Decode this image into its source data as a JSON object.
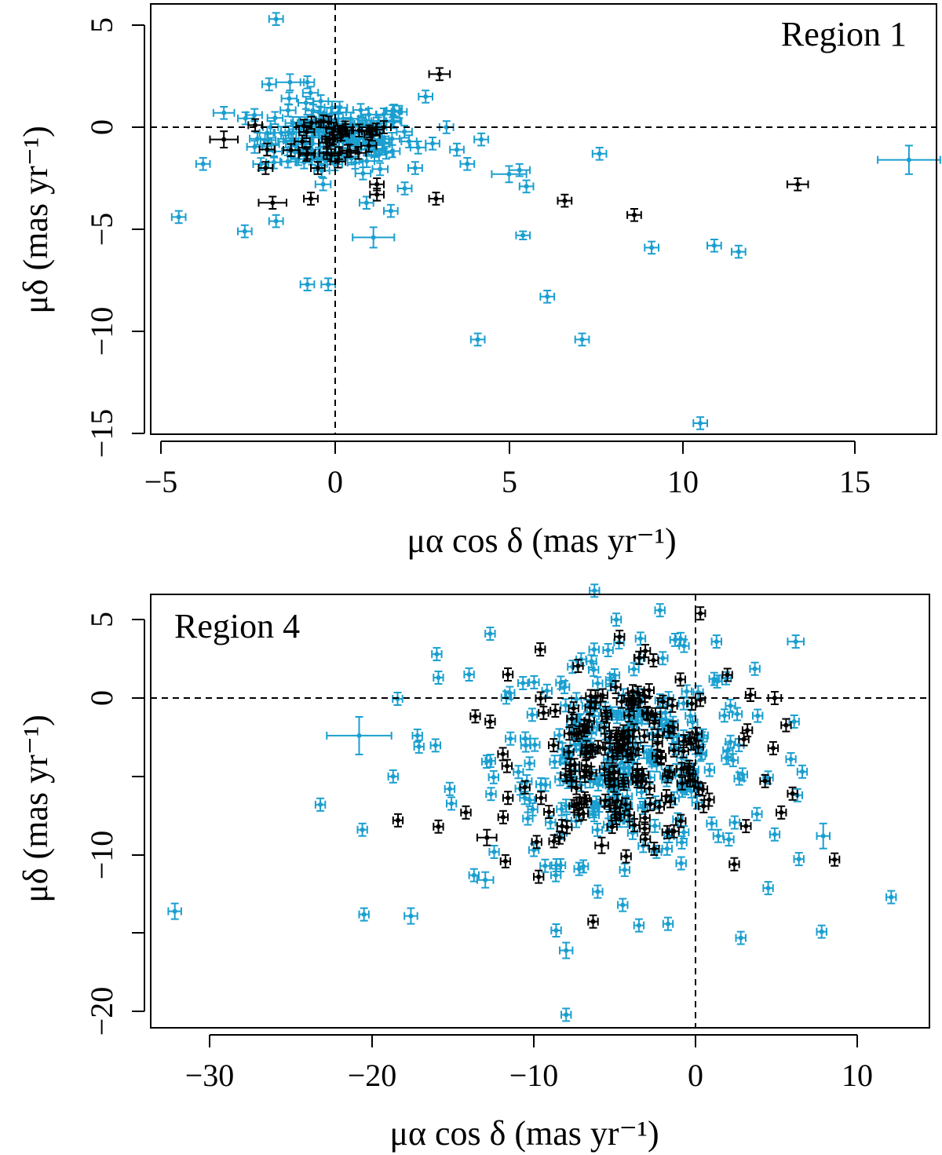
{
  "colors": {
    "cyan": "#1a9fd0",
    "black": "#000000"
  },
  "chart_data": [
    {
      "type": "scatter",
      "title": "Region 1",
      "xlabel": "μα cos δ (mas yr⁻¹)",
      "ylabel": "μδ (mas yr⁻¹)",
      "xlim": [
        -5.2,
        17.3
      ],
      "ylim": [
        -15.3,
        6.0
      ],
      "xticks": [
        -5,
        0,
        5,
        10,
        15
      ],
      "yticks": [
        5,
        0,
        -5,
        -10,
        -15
      ],
      "xtick_labels": [
        "−5",
        "0",
        "5",
        "10",
        "15"
      ],
      "ytick_labels": [
        "5",
        "0",
        "−5",
        "−10",
        "−15"
      ],
      "reference_lines": {
        "x": 0,
        "y": 0,
        "style": "dashed"
      },
      "cluster_core": {
        "x_mean": 0.0,
        "y_mean": -0.5,
        "x_sd": 0.9,
        "y_sd": 0.7,
        "n_cyan": 130,
        "n_black": 30
      },
      "series": [
        {
          "name": "cyan sources",
          "color": "#1a9fd0",
          "points": [
            {
              "x": -1.7,
              "y": 5.3,
              "ex": 0.2,
              "ey": 0.3
            },
            {
              "x": 16.5,
              "y": -1.6,
              "ex": 0.9,
              "ey": 0.7
            },
            {
              "x": 7.6,
              "y": -1.3,
              "ex": 0.2,
              "ey": 0.3
            },
            {
              "x": 5.0,
              "y": -2.3,
              "ex": 0.5,
              "ey": 0.4
            },
            {
              "x": 5.3,
              "y": -2.1,
              "ex": 0.3,
              "ey": 0.3
            },
            {
              "x": 5.5,
              "y": -2.9,
              "ex": 0.2,
              "ey": 0.3
            },
            {
              "x": 5.4,
              "y": -5.3,
              "ex": 0.2,
              "ey": 0.2
            },
            {
              "x": 1.1,
              "y": -5.4,
              "ex": 0.6,
              "ey": 0.5
            },
            {
              "x": -4.5,
              "y": -4.4,
              "ex": 0.2,
              "ey": 0.3
            },
            {
              "x": -2.6,
              "y": -5.1,
              "ex": 0.2,
              "ey": 0.3
            },
            {
              "x": -0.8,
              "y": -7.7,
              "ex": 0.2,
              "ey": 0.3
            },
            {
              "x": -0.2,
              "y": -7.7,
              "ex": 0.2,
              "ey": 0.3
            },
            {
              "x": 9.1,
              "y": -5.9,
              "ex": 0.2,
              "ey": 0.3
            },
            {
              "x": 10.9,
              "y": -5.8,
              "ex": 0.2,
              "ey": 0.3
            },
            {
              "x": 11.6,
              "y": -6.1,
              "ex": 0.2,
              "ey": 0.3
            },
            {
              "x": 6.1,
              "y": -8.3,
              "ex": 0.2,
              "ey": 0.3
            },
            {
              "x": 4.1,
              "y": -10.4,
              "ex": 0.2,
              "ey": 0.3
            },
            {
              "x": 7.1,
              "y": -10.4,
              "ex": 0.2,
              "ey": 0.3
            },
            {
              "x": 10.5,
              "y": -14.5,
              "ex": 0.2,
              "ey": 0.3
            },
            {
              "x": 2.6,
              "y": 1.5,
              "ex": 0.2,
              "ey": 0.3
            },
            {
              "x": 3.2,
              "y": 0.0,
              "ex": 0.2,
              "ey": 0.3
            },
            {
              "x": -1.3,
              "y": 2.2,
              "ex": 0.4,
              "ey": 0.4
            },
            {
              "x": -0.8,
              "y": 2.2,
              "ex": 0.2,
              "ey": 0.3
            },
            {
              "x": -1.9,
              "y": 2.1,
              "ex": 0.2,
              "ey": 0.3
            },
            {
              "x": 4.2,
              "y": -0.6,
              "ex": 0.2,
              "ey": 0.3
            },
            {
              "x": 3.8,
              "y": -1.8,
              "ex": 0.2,
              "ey": 0.3
            },
            {
              "x": 3.5,
              "y": -1.1,
              "ex": 0.2,
              "ey": 0.3
            },
            {
              "x": 2.0,
              "y": -3.0,
              "ex": 0.2,
              "ey": 0.3
            },
            {
              "x": 1.6,
              "y": -4.1,
              "ex": 0.2,
              "ey": 0.3
            },
            {
              "x": 0.9,
              "y": -3.7,
              "ex": 0.2,
              "ey": 0.3
            },
            {
              "x": -1.7,
              "y": -4.6,
              "ex": 0.2,
              "ey": 0.3
            },
            {
              "x": -3.8,
              "y": -1.8,
              "ex": 0.2,
              "ey": 0.3
            },
            {
              "x": -3.2,
              "y": 0.7,
              "ex": 0.3,
              "ey": 0.3
            },
            {
              "x": 2.8,
              "y": -0.8,
              "ex": 0.2,
              "ey": 0.3
            },
            {
              "x": 2.3,
              "y": -2.0,
              "ex": 0.2,
              "ey": 0.3
            }
          ]
        },
        {
          "name": "black sources",
          "color": "#000000",
          "points": [
            {
              "x": 3.0,
              "y": 2.6,
              "ex": 0.3,
              "ey": 0.3
            },
            {
              "x": 13.3,
              "y": -2.8,
              "ex": 0.3,
              "ey": 0.3
            },
            {
              "x": 6.6,
              "y": -3.6,
              "ex": 0.2,
              "ey": 0.3
            },
            {
              "x": 8.6,
              "y": -4.3,
              "ex": 0.2,
              "ey": 0.3
            },
            {
              "x": 2.9,
              "y": -3.5,
              "ex": 0.2,
              "ey": 0.3
            },
            {
              "x": 1.2,
              "y": -2.8,
              "ex": 0.2,
              "ey": 0.3
            },
            {
              "x": 1.2,
              "y": -3.3,
              "ex": 0.2,
              "ey": 0.3
            },
            {
              "x": -3.2,
              "y": -0.6,
              "ex": 0.4,
              "ey": 0.4
            },
            {
              "x": -1.8,
              "y": -3.7,
              "ex": 0.4,
              "ey": 0.3
            },
            {
              "x": -0.7,
              "y": -3.5,
              "ex": 0.2,
              "ey": 0.3
            },
            {
              "x": -0.5,
              "y": -2.0,
              "ex": 0.2,
              "ey": 0.3
            },
            {
              "x": -2.3,
              "y": 0.1,
              "ex": 0.2,
              "ey": 0.3
            },
            {
              "x": 1.4,
              "y": 0.0,
              "ex": 0.2,
              "ey": 0.3
            },
            {
              "x": -2.0,
              "y": -2.0,
              "ex": 0.2,
              "ey": 0.3
            }
          ]
        }
      ]
    },
    {
      "type": "scatter",
      "title": "Region 4",
      "xlabel": "μα cos δ (mas yr⁻¹)",
      "ylabel": "μδ (mas yr⁻¹)",
      "xlim": [
        -33.5,
        14.0
      ],
      "ylim": [
        -21.2,
        6.5
      ],
      "xticks": [
        -30,
        -20,
        -10,
        0,
        10
      ],
      "yticks": [
        5,
        0,
        -5,
        -10,
        -15,
        -20
      ],
      "xtick_labels": [
        "−30",
        "−20",
        "−10",
        "0",
        "10"
      ],
      "ytick_labels": [
        "5",
        "0",
        "",
        "−10",
        "",
        "−20"
      ],
      "reference_lines": {
        "x": 0,
        "y": 0,
        "style": "dashed"
      },
      "cluster_core": {
        "x_mean": -4.5,
        "y_mean": -3.8,
        "x_sd": 3.2,
        "y_sd": 2.6,
        "n_cyan": 260,
        "n_black": 170
      },
      "series": [
        {
          "name": "cyan sources",
          "color": "#1a9fd0",
          "points": [
            {
              "x": -32.2,
              "y": -13.6,
              "ex": 0.4,
              "ey": 0.5
            },
            {
              "x": -20.8,
              "y": -2.4,
              "ex": 2.0,
              "ey": 1.2
            },
            {
              "x": -23.2,
              "y": -6.8,
              "ex": 0.3,
              "ey": 0.4
            },
            {
              "x": -20.6,
              "y": -8.4,
              "ex": 0.3,
              "ey": 0.4
            },
            {
              "x": -20.5,
              "y": -13.8,
              "ex": 0.3,
              "ey": 0.4
            },
            {
              "x": -17.6,
              "y": -13.9,
              "ex": 0.4,
              "ey": 0.5
            },
            {
              "x": -18.7,
              "y": -5.0,
              "ex": 0.3,
              "ey": 0.4
            },
            {
              "x": -17.2,
              "y": -2.4,
              "ex": 0.3,
              "ey": 0.4
            },
            {
              "x": -17.1,
              "y": -3.1,
              "ex": 0.3,
              "ey": 0.4
            },
            {
              "x": -16.0,
              "y": 2.8,
              "ex": 0.3,
              "ey": 0.4
            },
            {
              "x": -15.9,
              "y": 1.3,
              "ex": 0.3,
              "ey": 0.4
            },
            {
              "x": -14.0,
              "y": 1.5,
              "ex": 0.3,
              "ey": 0.4
            },
            {
              "x": -12.7,
              "y": 4.1,
              "ex": 0.3,
              "ey": 0.4
            },
            {
              "x": -15.2,
              "y": -5.8,
              "ex": 0.3,
              "ey": 0.4
            },
            {
              "x": -13.0,
              "y": -11.6,
              "ex": 0.5,
              "ey": 0.5
            },
            {
              "x": -13.7,
              "y": -11.3,
              "ex": 0.3,
              "ey": 0.4
            },
            {
              "x": -8.0,
              "y": -16.1,
              "ex": 0.4,
              "ey": 0.5
            },
            {
              "x": -8.0,
              "y": -20.2,
              "ex": 0.3,
              "ey": 0.4
            },
            {
              "x": -4.5,
              "y": -13.2,
              "ex": 0.3,
              "ey": 0.4
            },
            {
              "x": -3.5,
              "y": -14.5,
              "ex": 0.3,
              "ey": 0.4
            },
            {
              "x": -1.7,
              "y": -14.4,
              "ex": 0.3,
              "ey": 0.4
            },
            {
              "x": 2.8,
              "y": -15.3,
              "ex": 0.3,
              "ey": 0.4
            },
            {
              "x": 7.8,
              "y": -14.9,
              "ex": 0.3,
              "ey": 0.4
            },
            {
              "x": 12.1,
              "y": -12.7,
              "ex": 0.3,
              "ey": 0.4
            },
            {
              "x": 7.9,
              "y": -8.8,
              "ex": 0.4,
              "ey": 0.8
            },
            {
              "x": 4.9,
              "y": -8.7,
              "ex": 0.3,
              "ey": 0.4
            },
            {
              "x": 6.2,
              "y": 3.6,
              "ex": 0.5,
              "ey": 0.4
            },
            {
              "x": 6.1,
              "y": -1.5,
              "ex": 0.3,
              "ey": 0.4
            },
            {
              "x": 5.9,
              "y": -3.9,
              "ex": 0.3,
              "ey": 0.4
            },
            {
              "x": 6.3,
              "y": -6.2,
              "ex": 0.3,
              "ey": 0.4
            },
            {
              "x": -4.9,
              "y": 5.0,
              "ex": 0.3,
              "ey": 0.4
            },
            {
              "x": -2.2,
              "y": 5.6,
              "ex": 0.3,
              "ey": 0.4
            },
            {
              "x": 1.3,
              "y": 3.6,
              "ex": 0.3,
              "ey": 0.4
            },
            {
              "x": 3.8,
              "y": -7.4,
              "ex": 0.3,
              "ey": 0.4
            },
            {
              "x": 1.0,
              "y": -8.0,
              "ex": 0.3,
              "ey": 0.4
            },
            {
              "x": -9.3,
              "y": -10.7,
              "ex": 0.3,
              "ey": 0.4
            },
            {
              "x": -7.2,
              "y": -10.9,
              "ex": 0.3,
              "ey": 0.4
            }
          ]
        },
        {
          "name": "black sources",
          "color": "#000000",
          "points": [
            {
              "x": 0.3,
              "y": 5.4,
              "ex": 0.3,
              "ey": 0.4
            },
            {
              "x": -18.4,
              "y": -7.8,
              "ex": 0.3,
              "ey": 0.4
            },
            {
              "x": -15.9,
              "y": -8.2,
              "ex": 0.3,
              "ey": 0.4
            },
            {
              "x": -14.2,
              "y": -7.3,
              "ex": 0.3,
              "ey": 0.4
            },
            {
              "x": -12.9,
              "y": -8.9,
              "ex": 0.6,
              "ey": 0.5
            },
            {
              "x": -9.7,
              "y": -11.4,
              "ex": 0.3,
              "ey": 0.4
            },
            {
              "x": -8.4,
              "y": -8.9,
              "ex": 0.3,
              "ey": 0.4
            },
            {
              "x": -5.8,
              "y": -9.4,
              "ex": 0.4,
              "ey": 0.5
            },
            {
              "x": -4.7,
              "y": 3.9,
              "ex": 0.3,
              "ey": 0.4
            },
            {
              "x": -3.1,
              "y": 3.0,
              "ex": 0.3,
              "ey": 0.4
            },
            {
              "x": -9.6,
              "y": 3.1,
              "ex": 0.3,
              "ey": 0.4
            },
            {
              "x": -11.6,
              "y": 1.5,
              "ex": 0.3,
              "ey": 0.4
            },
            {
              "x": 3.4,
              "y": 0.2,
              "ex": 0.3,
              "ey": 0.4
            },
            {
              "x": 4.9,
              "y": 0.0,
              "ex": 0.4,
              "ey": 0.4
            },
            {
              "x": 4.8,
              "y": -3.2,
              "ex": 0.3,
              "ey": 0.4
            },
            {
              "x": 4.3,
              "y": -5.3,
              "ex": 0.3,
              "ey": 0.4
            },
            {
              "x": 6.0,
              "y": -6.1,
              "ex": 0.3,
              "ey": 0.4
            },
            {
              "x": 5.3,
              "y": -7.3,
              "ex": 0.3,
              "ey": 0.4
            },
            {
              "x": 2.4,
              "y": -10.6,
              "ex": 0.3,
              "ey": 0.4
            },
            {
              "x": 8.6,
              "y": -10.3,
              "ex": 0.3,
              "ey": 0.4
            },
            {
              "x": 0.5,
              "y": -6.9,
              "ex": 0.3,
              "ey": 0.4
            },
            {
              "x": -12.7,
              "y": -1.5,
              "ex": 0.3,
              "ey": 0.4
            },
            {
              "x": -11.9,
              "y": -7.6,
              "ex": 0.3,
              "ey": 0.4
            },
            {
              "x": -3.1,
              "y": -9.0,
              "ex": 0.3,
              "ey": 0.4
            }
          ]
        }
      ]
    }
  ]
}
